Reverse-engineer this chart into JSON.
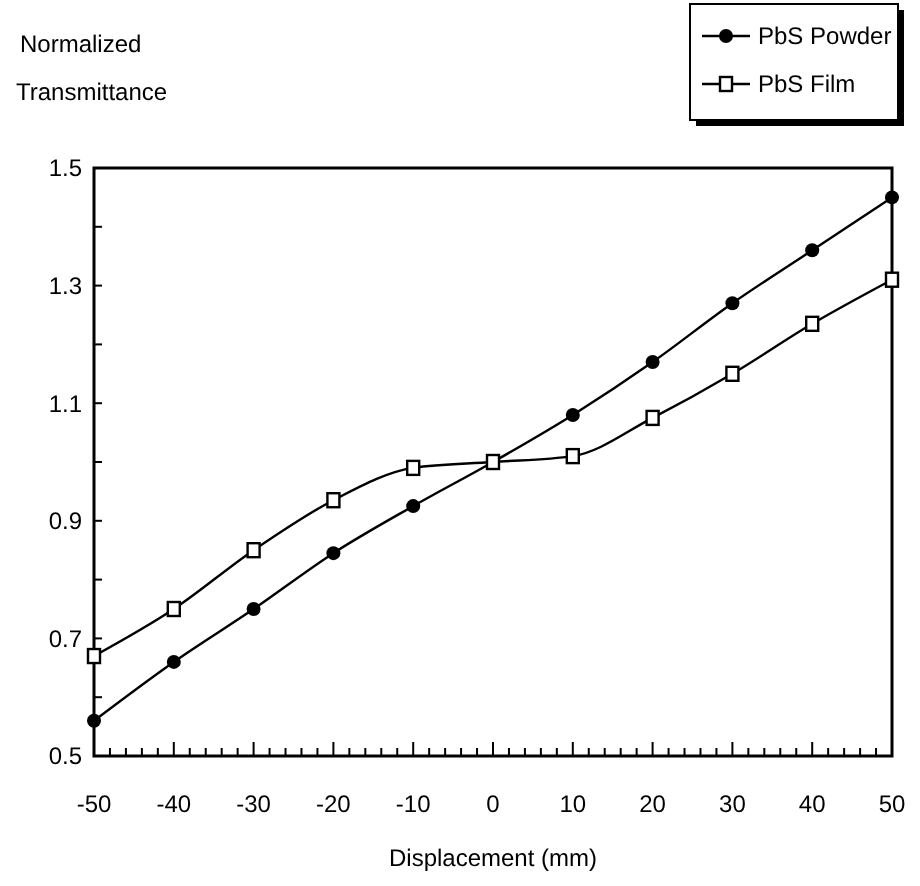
{
  "chart_data": {
    "type": "line",
    "xlabel": "Displacement (mm)",
    "ylabel": "Normalized Transmittance",
    "x": [
      -50,
      -40,
      -30,
      -20,
      -10,
      0,
      10,
      20,
      30,
      40,
      50
    ],
    "series": [
      {
        "name": "PbS Powder",
        "color": "#000000",
        "marker": "circle",
        "values": [
          0.56,
          0.66,
          0.75,
          0.845,
          0.925,
          1.0,
          1.08,
          1.17,
          1.27,
          1.36,
          1.45
        ]
      },
      {
        "name": "PbS Film",
        "color": "#000000",
        "marker": "square",
        "values": [
          0.67,
          0.75,
          0.85,
          0.935,
          0.99,
          1.0,
          1.01,
          1.075,
          1.15,
          1.235,
          1.31
        ]
      }
    ],
    "xlim": [
      -50,
      50
    ],
    "xticks": [
      -50,
      -40,
      -30,
      -20,
      -10,
      0,
      10,
      20,
      30,
      40,
      50
    ],
    "ylim": [
      0.5,
      1.5
    ],
    "yticks": [
      0.5,
      {
        "value": 0.6,
        "label": null
      },
      0.7,
      {
        "value": 0.8,
        "label": null
      },
      0.9,
      {
        "value": 1.0,
        "label": null
      },
      1.1,
      {
        "value": 1.2,
        "label": null
      },
      1.3,
      {
        "value": 1.4,
        "label": null
      },
      1.5
    ],
    "grid": false,
    "legend": "top right"
  }
}
